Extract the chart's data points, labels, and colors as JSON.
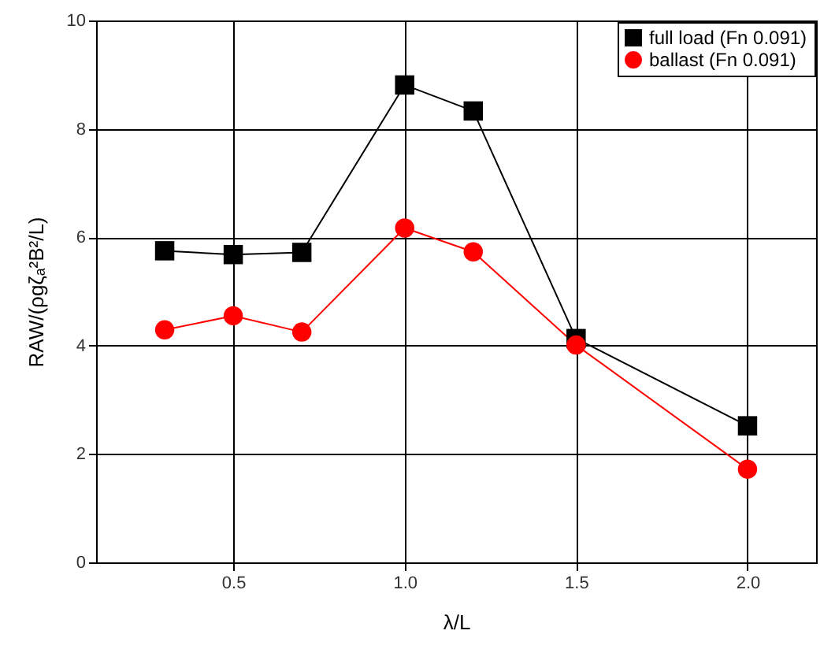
{
  "chart_data": {
    "type": "line",
    "xlabel": "λ/L",
    "ylabel": "RAW/(ρgζₐ²B²/L)",
    "x": [
      0.3,
      0.5,
      0.7,
      1.0,
      1.2,
      1.5,
      2.0
    ],
    "series": [
      {
        "name": "full load (Fn 0.091)",
        "color": "#000000",
        "marker": "square",
        "values": [
          5.75,
          5.68,
          5.72,
          8.81,
          8.33,
          4.13,
          2.52
        ]
      },
      {
        "name": "ballast (Fn 0.091)",
        "color": "#ff0000",
        "marker": "circle",
        "values": [
          4.29,
          4.55,
          4.25,
          6.17,
          5.73,
          4.01,
          1.72
        ]
      }
    ],
    "xlim": [
      0.1,
      2.2
    ],
    "xticks": [
      {
        "value": 0.5,
        "label": "0.5"
      },
      {
        "value": 1.0,
        "label": "1.0"
      },
      {
        "value": 1.5,
        "label": "1.5"
      },
      {
        "value": 2.0,
        "label": "2.0"
      }
    ],
    "ylim": [
      0,
      10
    ],
    "yticks": [
      0,
      2,
      4,
      6,
      8,
      10
    ],
    "grid": true,
    "legend": "top right",
    "line_style": "solid"
  }
}
